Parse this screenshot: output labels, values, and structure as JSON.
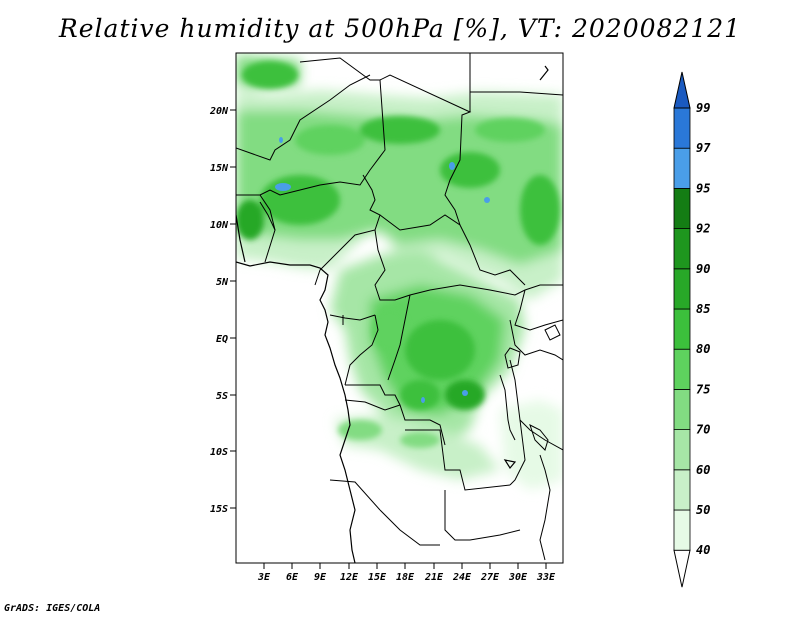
{
  "title": "Relative humidity at 500hPa [%], VT: 2020082121",
  "credit": "GrADS: IGES/COLA",
  "map": {
    "lat_ticks": [
      "20N",
      "15N",
      "10N",
      "5N",
      "EQ",
      "5S",
      "10S",
      "15S"
    ],
    "lon_ticks": [
      "3E",
      "6E",
      "9E",
      "12E",
      "15E",
      "18E",
      "21E",
      "24E",
      "27E",
      "30E",
      "33E"
    ]
  },
  "colorbar": {
    "labels": [
      "40",
      "50",
      "60",
      "70",
      "75",
      "80",
      "85",
      "90",
      "92",
      "95",
      "97",
      "99"
    ],
    "colors": [
      "#ffffff",
      "#e6fae6",
      "#c8f0c8",
      "#a6e6a6",
      "#82dc82",
      "#5ed25e",
      "#3cc03c",
      "#28a828",
      "#1e961e",
      "#147d14",
      "#4a9ee8",
      "#2a78d8",
      "#1a5ac0"
    ]
  }
}
